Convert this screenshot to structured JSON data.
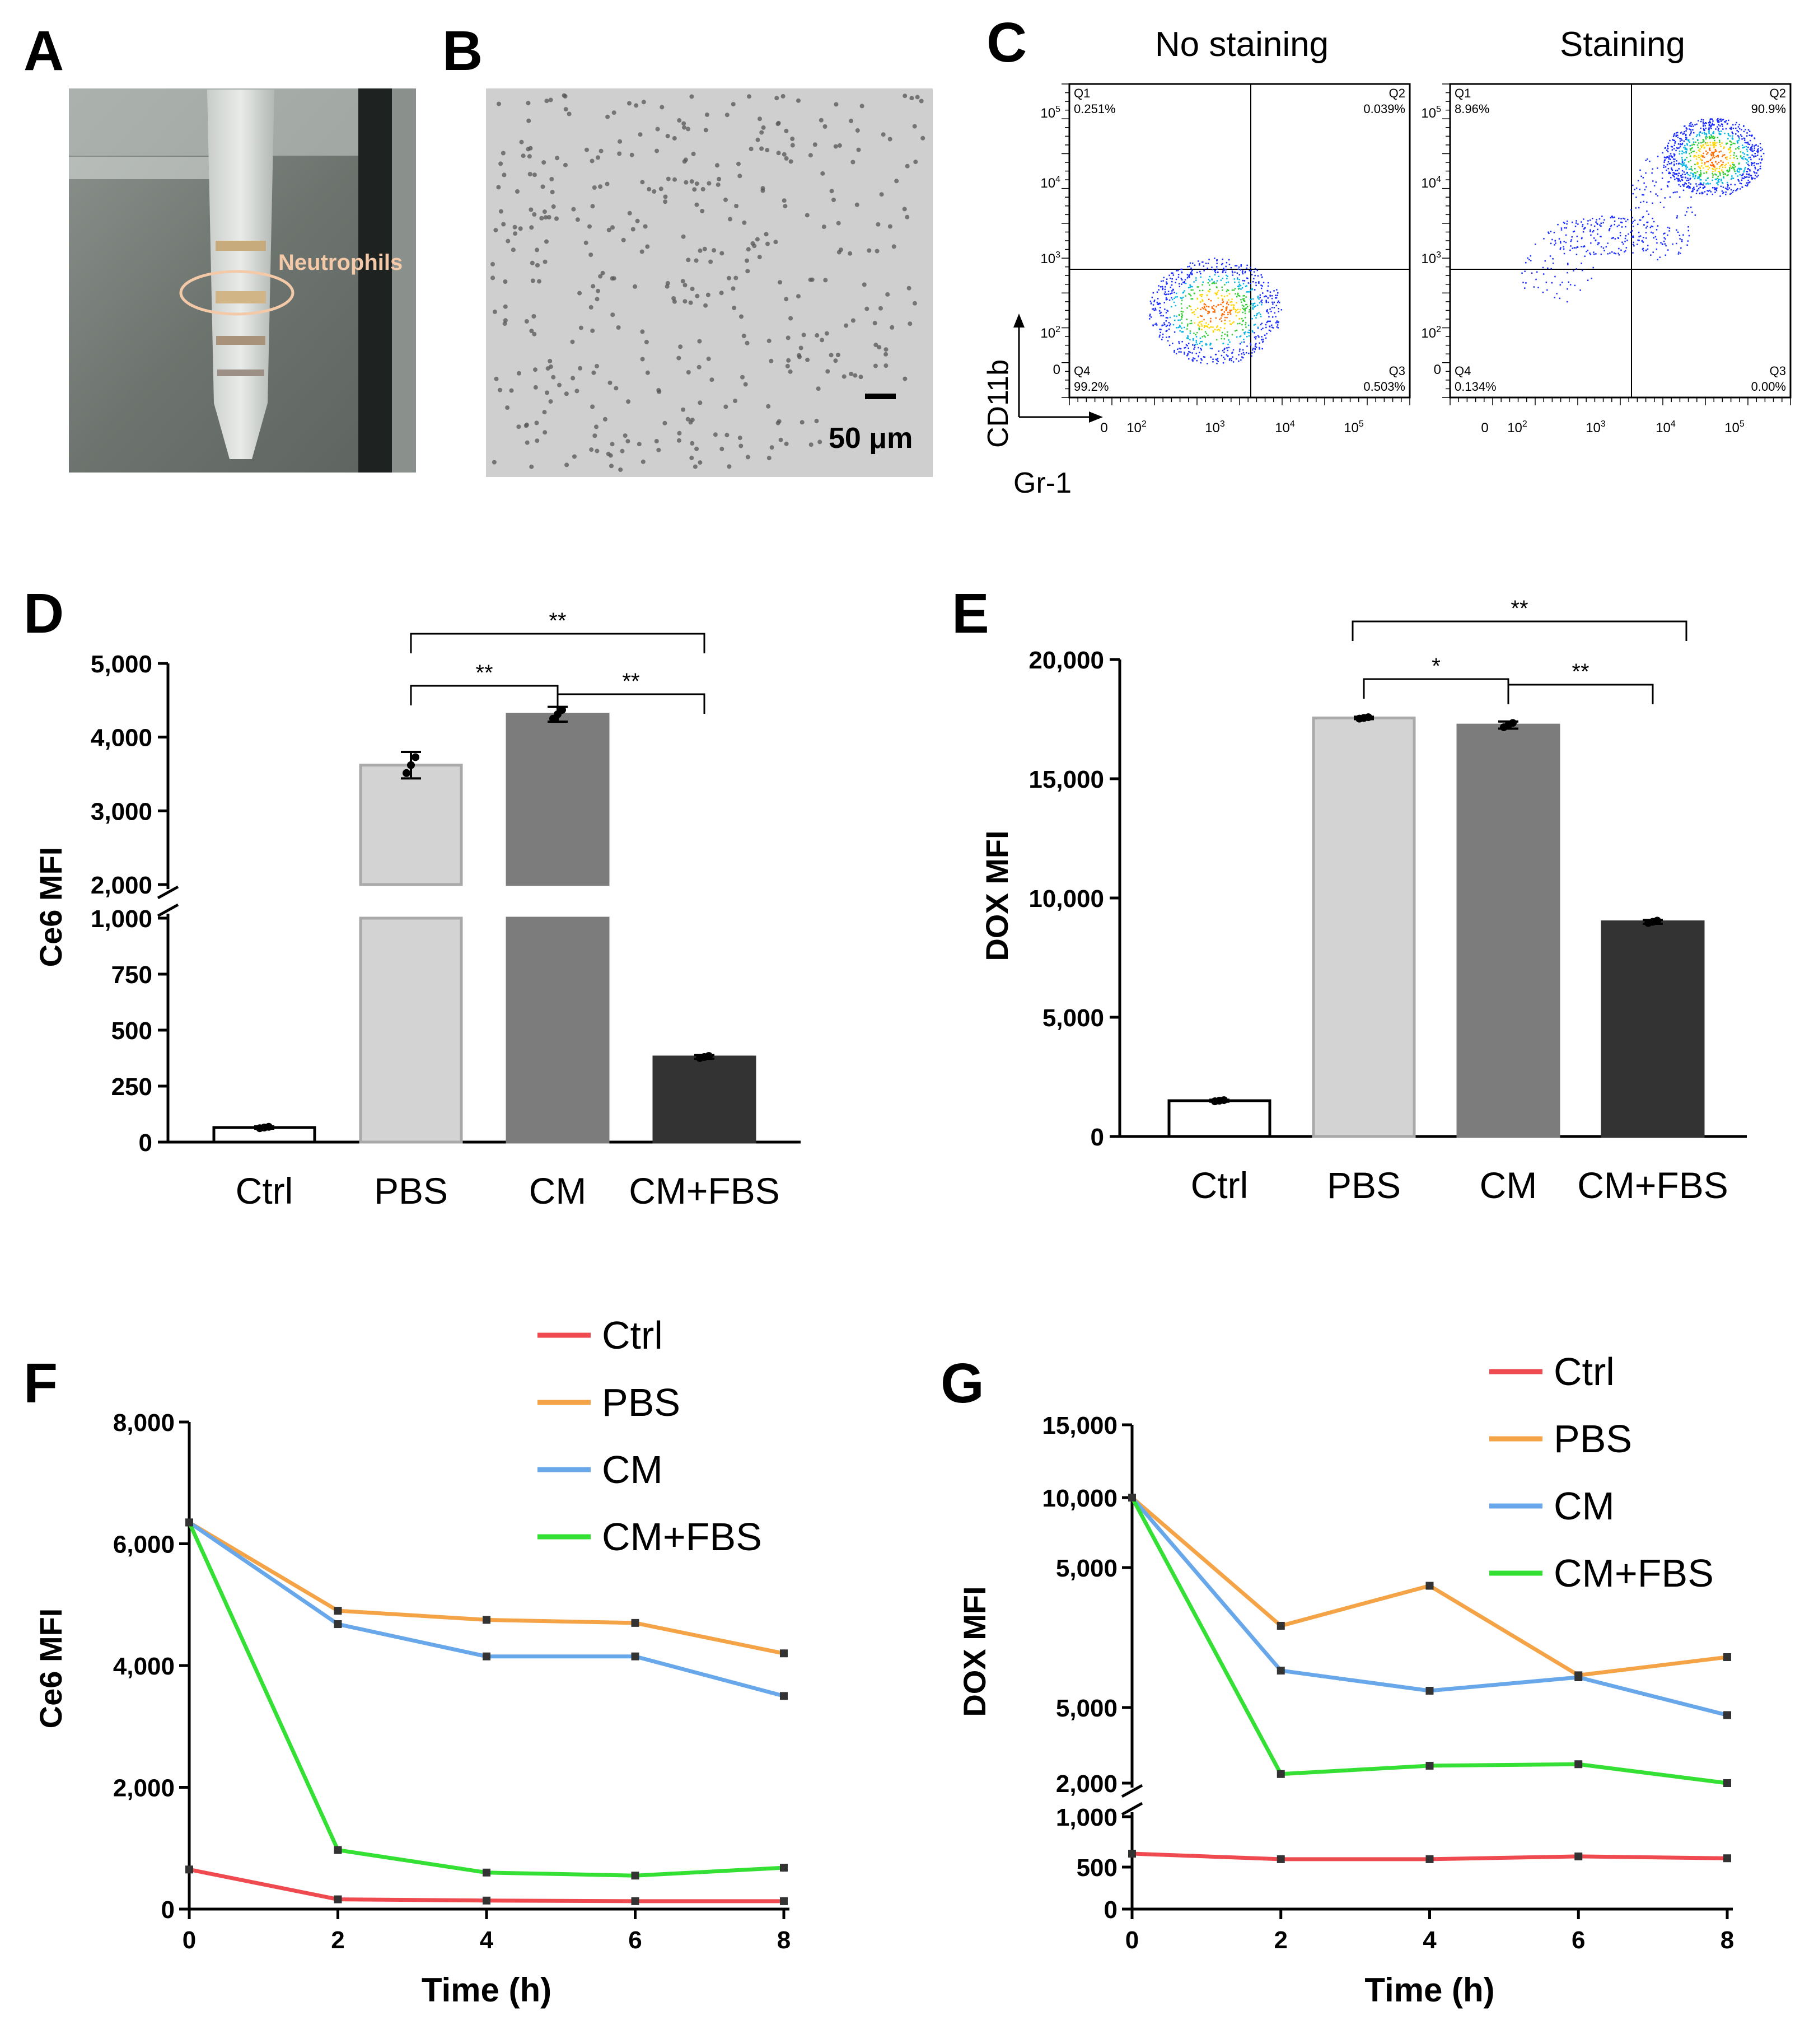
{
  "panels": {
    "a": {
      "label": "A",
      "annotation": "Neutrophils"
    },
    "b": {
      "label": "B",
      "scale_bar": "50 μm"
    },
    "c": {
      "label": "C",
      "x_axis": "Gr-1",
      "y_axis": "CD11b",
      "plots": [
        {
          "title": "No staining",
          "quadrants": {
            "Q1": "0.251%",
            "Q2": "0.039%",
            "Q3": "0.503%",
            "Q4": "99.2%"
          }
        },
        {
          "title": "Staining",
          "quadrants": {
            "Q1": "8.96%",
            "Q2": "90.9%",
            "Q3": "0.00%",
            "Q4": "0.134%"
          }
        }
      ],
      "quadrant_names": [
        "Q1",
        "Q2",
        "Q3",
        "Q4"
      ],
      "tick_base": "10"
    },
    "d": {
      "label": "D"
    },
    "e": {
      "label": "E"
    },
    "f": {
      "label": "F"
    },
    "g": {
      "label": "G"
    }
  },
  "colors": {
    "ctrl": "#ef4a4f",
    "pbs": "#f4a347",
    "cm": "#68a8ea",
    "cmfbs": "#33e033",
    "bar_ctrl": "#ffffff",
    "bar_pbs": "#d3d3d3",
    "bar_cm": "#7c7c7c",
    "bar_cmfbs": "#333333"
  },
  "chart_data": [
    {
      "id": "D",
      "type": "bar",
      "categories": [
        "Ctrl",
        "PBS",
        "CM",
        "CM+FBS"
      ],
      "values": [
        65,
        3620,
        4310,
        380
      ],
      "errors": [
        5,
        180,
        100,
        8
      ],
      "ylabel": "Ce6  MFI",
      "axis_break": [
        1000,
        2000
      ],
      "ylim": [
        0,
        5000
      ],
      "yticks_lower": [
        "0",
        "250",
        "500",
        "750",
        "1,000"
      ],
      "yticks_upper": [
        "2,000",
        "3,000",
        "4,000",
        "5,000"
      ],
      "significance": [
        {
          "from": "PBS",
          "to": "CM",
          "label": "**"
        },
        {
          "from": "CM",
          "to": "CM+FBS",
          "label": "**"
        },
        {
          "from": "PBS",
          "to": "CM+FBS",
          "label": "**"
        }
      ]
    },
    {
      "id": "E",
      "type": "bar",
      "categories": [
        "Ctrl",
        "PBS",
        "CM",
        "CM+FBS"
      ],
      "values": [
        1500,
        17550,
        17250,
        9000
      ],
      "errors": [
        40,
        50,
        150,
        80
      ],
      "ylabel": "DOX  MFI",
      "ylim": [
        0,
        20000
      ],
      "yticks": [
        "0",
        "5,000",
        "10,000",
        "15,000",
        "20,000"
      ],
      "significance": [
        {
          "from": "PBS",
          "to": "CM",
          "label": "*"
        },
        {
          "from": "CM",
          "to": "CM+FBS",
          "label": "**"
        },
        {
          "from": "PBS",
          "to": "CM+FBS",
          "label": "**"
        }
      ]
    },
    {
      "id": "F",
      "type": "line",
      "x": [
        0,
        2,
        4,
        6,
        8
      ],
      "series": [
        {
          "name": "Ctrl",
          "values": [
            650,
            160,
            140,
            130,
            130
          ]
        },
        {
          "name": "PBS",
          "values": [
            6350,
            4900,
            4750,
            4700,
            4200
          ]
        },
        {
          "name": "CM",
          "values": [
            6350,
            4680,
            4150,
            4150,
            3500
          ]
        },
        {
          "name": "CM+FBS",
          "values": [
            6350,
            970,
            600,
            550,
            680
          ]
        }
      ],
      "xlabel": "Time (h)",
      "ylabel": "Ce6  MFI",
      "xlim": [
        0,
        8
      ],
      "ylim": [
        0,
        8000
      ],
      "yticks": [
        "0",
        "2,000",
        "4,000",
        "6,000",
        "8,000"
      ],
      "xticks": [
        "0",
        "2",
        "4",
        "6",
        "8"
      ]
    },
    {
      "id": "G",
      "type": "line",
      "x": [
        0,
        2,
        4,
        6,
        8
      ],
      "series": [
        {
          "name": "Ctrl",
          "values": [
            600,
            540,
            540,
            570,
            550
          ]
        },
        {
          "name": "PBS",
          "values": [
            10000,
            4200,
            4750,
            3480,
            3750
          ]
        },
        {
          "name": "CM",
          "values": [
            10000,
            3550,
            3250,
            3450,
            2900
          ]
        },
        {
          "name": "CM+FBS",
          "values": [
            10000,
            2120,
            2230,
            2250,
            2000
          ]
        }
      ],
      "xlabel": "Time (h)",
      "ylabel": "DOX MFI",
      "axis_break": [
        1000,
        2000
      ],
      "xlim": [
        0,
        8
      ],
      "yticks": [
        "0",
        "500",
        "1,000",
        "2,000",
        "5,000",
        "5,000",
        "10,000",
        "15,000"
      ],
      "xticks": [
        "0",
        "2",
        "4",
        "6",
        "8"
      ]
    }
  ]
}
